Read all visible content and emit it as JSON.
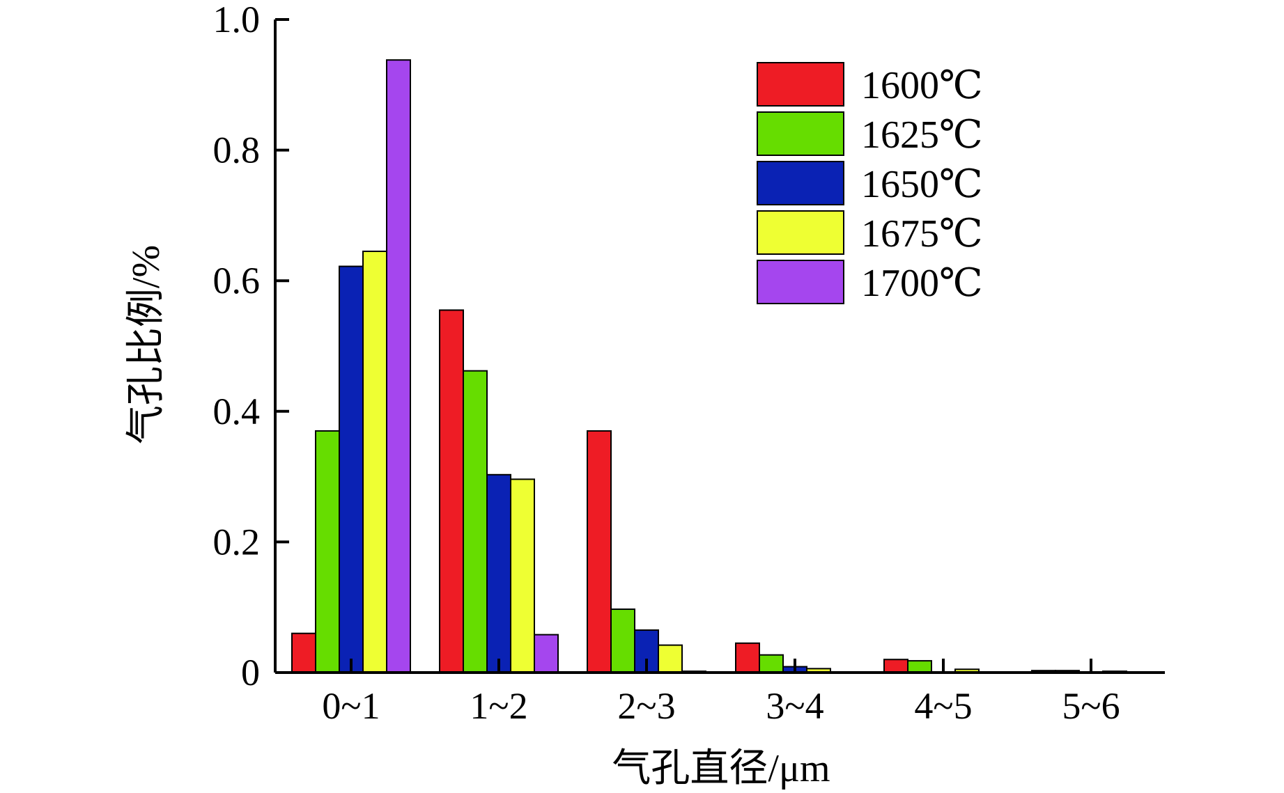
{
  "chart_data": {
    "type": "bar",
    "title": "",
    "xlabel": "气孔直径/μm",
    "ylabel": "气孔比例/%",
    "categories": [
      "0~1",
      "1~2",
      "2~3",
      "3~4",
      "4~5",
      "5~6"
    ],
    "ylim": [
      0,
      1.0
    ],
    "yticks": [
      "0",
      "0.2",
      "0.4",
      "0.6",
      "0.8",
      "1.0"
    ],
    "ytick_values": [
      0,
      0.2,
      0.4,
      0.6,
      0.8,
      1.0
    ],
    "grid": false,
    "legend_position": "top-right",
    "series": [
      {
        "name": "1600℃",
        "color": "#ee1c25",
        "values": [
          0.06,
          0.555,
          0.37,
          0.045,
          0.02,
          0.003
        ]
      },
      {
        "name": "1625℃",
        "color": "#66dd00",
        "values": [
          0.37,
          0.462,
          0.097,
          0.027,
          0.018,
          0.003
        ]
      },
      {
        "name": "1650℃",
        "color": "#0a22b4",
        "values": [
          0.622,
          0.303,
          0.065,
          0.009,
          0.0,
          0.0
        ]
      },
      {
        "name": "1675℃",
        "color": "#eeff33",
        "values": [
          0.645,
          0.296,
          0.042,
          0.006,
          0.005,
          0.002
        ]
      },
      {
        "name": "1700℃",
        "color": "#a546ee",
        "values": [
          0.938,
          0.058,
          0.002,
          0.0,
          0.0,
          0.001
        ]
      }
    ]
  }
}
